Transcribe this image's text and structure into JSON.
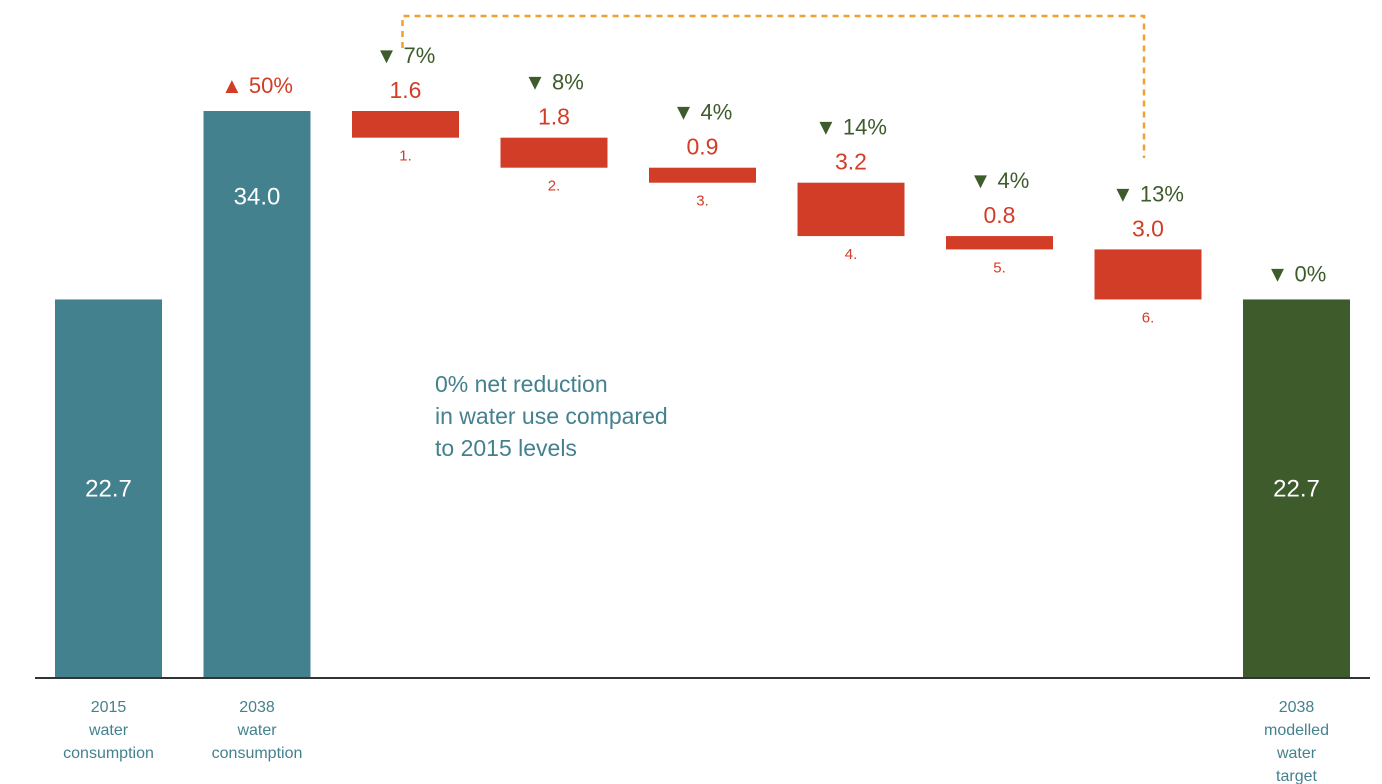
{
  "colors": {
    "baseline_bar": "#44818f",
    "reduction_bar": "#d23d27",
    "target_bar": "#3d5b2b",
    "increase_text": "#d23d27",
    "decrease_text": "#3d5b2b",
    "axis": "#333333",
    "connector": "#f0a030",
    "annotation_text": "#44818f"
  },
  "chart_data": {
    "type": "bar",
    "subtype": "waterfall",
    "ylim": [
      0,
      34
    ],
    "bars": [
      {
        "category": "2015 water consumption",
        "kind": "total",
        "value": 22.7,
        "value_label": "22.7"
      },
      {
        "category": "2038 water consumption",
        "kind": "total",
        "value": 34.0,
        "value_label": "34.0",
        "change_marker": "▲",
        "change_label": "50%"
      },
      {
        "step_label": "1.",
        "kind": "reduction",
        "value": 1.6,
        "value_label": "1.6",
        "change_marker": "▼",
        "change_label": "7%"
      },
      {
        "step_label": "2.",
        "kind": "reduction",
        "value": 1.8,
        "value_label": "1.8",
        "change_marker": "▼",
        "change_label": "8%"
      },
      {
        "step_label": "3.",
        "kind": "reduction",
        "value": 0.9,
        "value_label": "0.9",
        "change_marker": "▼",
        "change_label": "4%"
      },
      {
        "step_label": "4.",
        "kind": "reduction",
        "value": 3.2,
        "value_label": "3.2",
        "change_marker": "▼",
        "change_label": "14%"
      },
      {
        "step_label": "5.",
        "kind": "reduction",
        "value": 0.8,
        "value_label": "0.8",
        "change_marker": "▼",
        "change_label": "4%"
      },
      {
        "step_label": "6.",
        "kind": "reduction",
        "value": 3.0,
        "value_label": "3.0",
        "change_marker": "▼",
        "change_label": "13%"
      },
      {
        "category": "2038 modelled water target",
        "kind": "target",
        "value": 22.7,
        "value_label": "22.7",
        "change_marker": "▼",
        "change_label": "0%"
      }
    ],
    "category_labels": [
      [
        "2015",
        "water",
        "consumption"
      ],
      [
        "2038",
        "water",
        "consumption"
      ],
      [
        "2038",
        "modelled",
        "water",
        "target"
      ]
    ],
    "annotation": [
      "0% net reduction",
      "in water use compared",
      "to 2015 levels"
    ],
    "grid": false,
    "legend": "none"
  }
}
